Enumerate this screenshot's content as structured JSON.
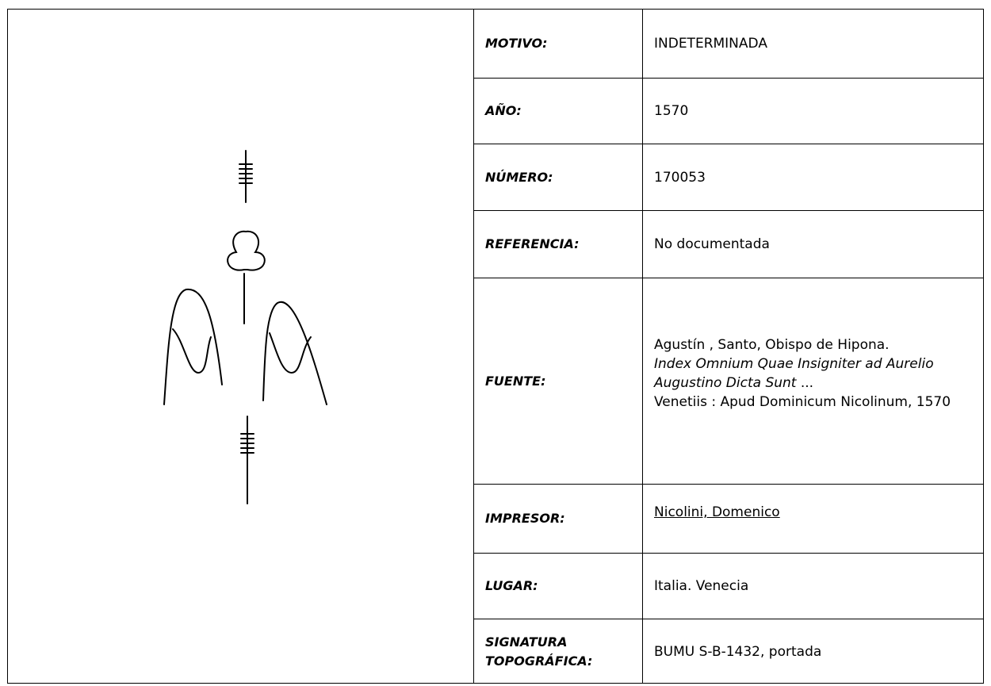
{
  "rows": [
    {
      "label": "MOTIVO:",
      "value": "INDETERMINADA"
    },
    {
      "label": "AÑO:",
      "value": "1570"
    },
    {
      "label": "NÚMERO:",
      "value": "170053"
    },
    {
      "label": "REFERENCIA:",
      "value": "No documentada"
    },
    {
      "label": "FUENTE:",
      "value": [
        "Agustín , Santo, Obispo de Hipona.",
        "Index Omnium Quae Insigniter ad Aurelio Augustino Dicta Sunt",
        " ...",
        "Venetiis : Apud Dominicum Nicolinum, 1570"
      ]
    },
    {
      "label": "IMPRESOR:",
      "value": "Nicolini, Domenico"
    },
    {
      "label": "LUGAR:",
      "value": "Italia. Venecia"
    },
    {
      "label": "SIGNATURA TOPOGRÁFICA:",
      "value": "BUMU S-B-1432, portada"
    }
  ]
}
